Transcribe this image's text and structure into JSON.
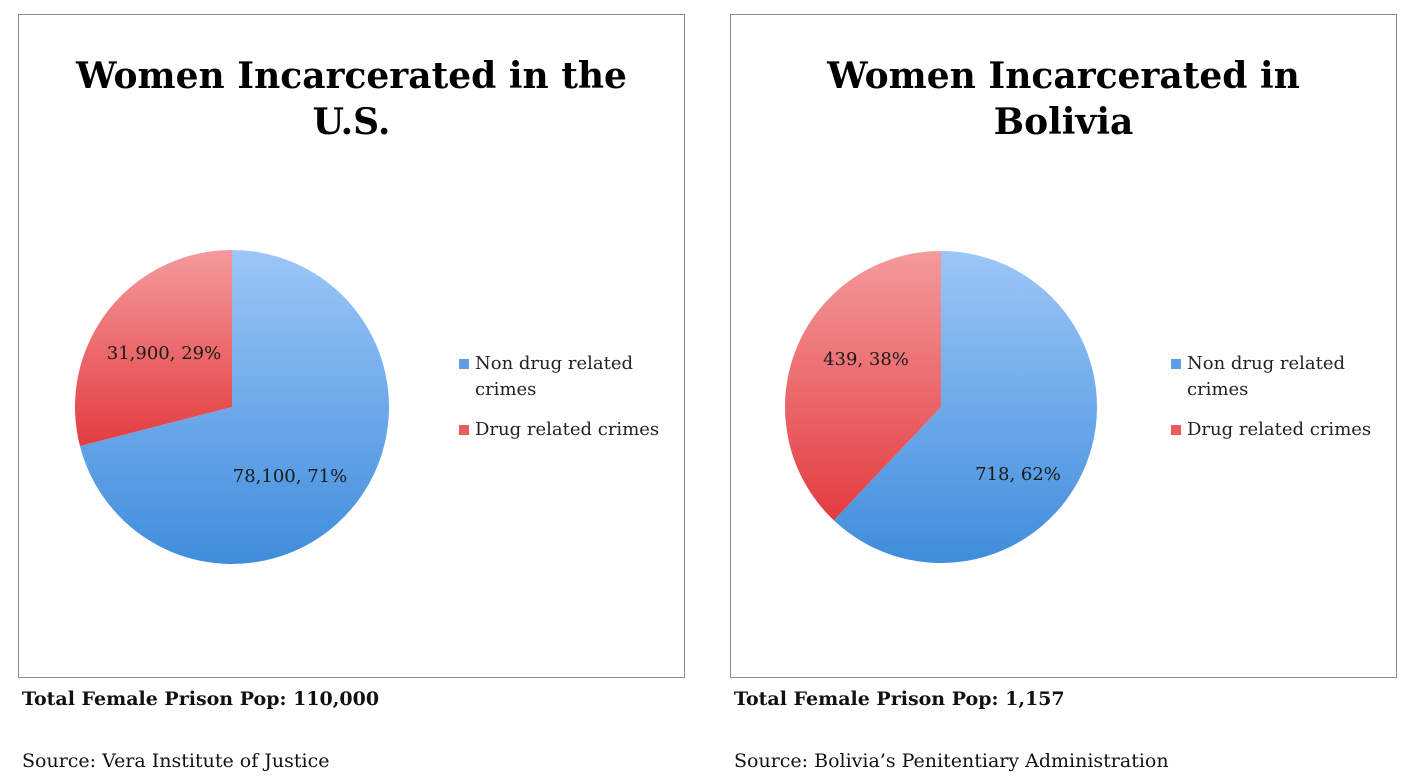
{
  "colors": {
    "blue_light": "#9cc6f7",
    "blue_dark": "#3f8ddc",
    "red_light": "#f49a9c",
    "red_dark": "#e33c3f"
  },
  "chart_data": [
    {
      "type": "pie",
      "title": "Women Incarcerated in the U.S.",
      "title_lines": [
        "Women Incarcerated in the",
        "U.S."
      ],
      "slices": [
        {
          "label": "Non drug related crimes",
          "legend_lines": [
            "Non drug related",
            "crimes"
          ],
          "value": 78100,
          "percent": 71,
          "data_label": "78,100, 71%",
          "color": "blue"
        },
        {
          "label": "Drug related crimes",
          "legend_lines": [
            "Drug related crimes"
          ],
          "value": 31900,
          "percent": 29,
          "data_label": "31,900, 29%",
          "color": "red"
        }
      ],
      "legend_position": "right",
      "total_label": "Total Female Prison Pop: 110,000",
      "source_label": "Source: Vera Institute of Justice"
    },
    {
      "type": "pie",
      "title": "Women Incarcerated in Bolivia",
      "title_lines": [
        "Women Incarcerated in",
        "Bolivia"
      ],
      "slices": [
        {
          "label": "Non drug related crimes",
          "legend_lines": [
            "Non drug related",
            "crimes"
          ],
          "value": 718,
          "percent": 62,
          "data_label": "718, 62%",
          "color": "blue"
        },
        {
          "label": "Drug related crimes",
          "legend_lines": [
            "Drug related crimes"
          ],
          "value": 439,
          "percent": 38,
          "data_label": "439, 38%",
          "color": "red"
        }
      ],
      "legend_position": "right",
      "total_label": "Total Female Prison Pop: 1,157",
      "source_label": "Source: Bolivia’s Penitentiary Administration"
    }
  ]
}
